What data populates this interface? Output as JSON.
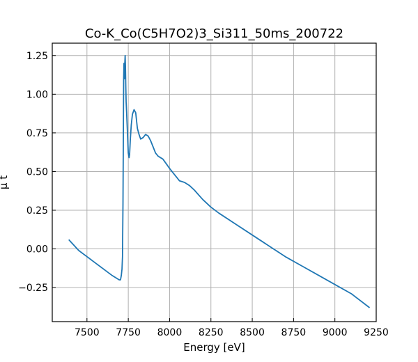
{
  "chart_data": {
    "type": "line",
    "title": "Co-K_Co(C5H7O2)3_Si311_50ms_200722",
    "xlabel": "Energy [eV]",
    "ylabel": "μ t",
    "xlim": [
      7290,
      9250
    ],
    "ylim": [
      -0.47,
      1.33
    ],
    "grid": true,
    "legend": "none",
    "xticks": [
      7500,
      7750,
      8000,
      8250,
      8500,
      8750,
      9000,
      9250
    ],
    "yticks": [
      -0.25,
      0.0,
      0.25,
      0.5,
      0.75,
      1.0,
      1.25
    ],
    "xtick_labels": [
      "7500",
      "7750",
      "8000",
      "8250",
      "8500",
      "8750",
      "9000",
      "9250"
    ],
    "ytick_labels": [
      "−0.25",
      "0.00",
      "0.25",
      "0.50",
      "0.75",
      "1.00",
      "1.25"
    ],
    "series": [
      {
        "name": "",
        "color": "#1f77b4",
        "x": [
          7390,
          7450,
          7500,
          7550,
          7600,
          7650,
          7680,
          7695,
          7703,
          7708,
          7712,
          7715,
          7718,
          7720,
          7722,
          7724,
          7725,
          7727,
          7729,
          7731,
          7733,
          7735,
          7737,
          7740,
          7745,
          7750,
          7755,
          7758,
          7762,
          7768,
          7775,
          7785,
          7795,
          7805,
          7815,
          7825,
          7840,
          7855,
          7870,
          7885,
          7900,
          7915,
          7930,
          7945,
          7960,
          7980,
          8000,
          8030,
          8060,
          8090,
          8120,
          8150,
          8200,
          8250,
          8300,
          8400,
          8500,
          8600,
          8700,
          8800,
          8900,
          9000,
          9100,
          9210
        ],
        "y": [
          0.06,
          -0.01,
          -0.05,
          -0.09,
          -0.13,
          -0.17,
          -0.19,
          -0.2,
          -0.2,
          -0.17,
          -0.13,
          -0.05,
          0.3,
          0.7,
          1.1,
          1.2,
          1.15,
          1.1,
          1.2,
          1.25,
          1.18,
          1.05,
          0.95,
          0.88,
          0.75,
          0.62,
          0.59,
          0.61,
          0.7,
          0.8,
          0.87,
          0.9,
          0.88,
          0.78,
          0.74,
          0.71,
          0.72,
          0.74,
          0.73,
          0.7,
          0.66,
          0.62,
          0.6,
          0.59,
          0.58,
          0.55,
          0.52,
          0.48,
          0.44,
          0.43,
          0.41,
          0.38,
          0.32,
          0.27,
          0.23,
          0.16,
          0.09,
          0.02,
          -0.05,
          -0.11,
          -0.17,
          -0.23,
          -0.29,
          -0.38
        ]
      }
    ]
  }
}
